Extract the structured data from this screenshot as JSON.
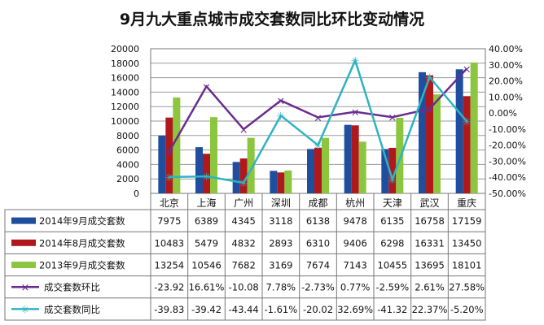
{
  "chart_data": {
    "type": "bar",
    "title": "9月九大重点城市成交套数同比环比变动情况",
    "categories": [
      "北京",
      "上海",
      "广州",
      "深圳",
      "成都",
      "杭州",
      "天津",
      "武汉",
      "重庆"
    ],
    "left_axis": {
      "min": 0,
      "max": 20000,
      "step": 2000,
      "ticks": [
        "0",
        "2000",
        "4000",
        "6000",
        "8000",
        "10000",
        "12000",
        "14000",
        "16000",
        "18000",
        "20000"
      ]
    },
    "right_axis": {
      "min": -50,
      "max": 40,
      "step": 10,
      "ticks": [
        "-50.00%",
        "-40.00%",
        "-30.00%",
        "-20.00%",
        "-10.00%",
        "0.00%",
        "10.00%",
        "20.00%",
        "30.00%",
        "40.00%"
      ]
    },
    "grid": true,
    "legend_position": "table-bottom",
    "bar_series": [
      {
        "name": "2014年9月成交套数",
        "color": "#1f4e9e",
        "values": [
          7975,
          6389,
          4345,
          3118,
          6138,
          9478,
          6135,
          16758,
          17159
        ],
        "labels": [
          "7975",
          "6389",
          "4345",
          "3118",
          "6138",
          "9478",
          "6135",
          "16758",
          "17159"
        ]
      },
      {
        "name": "2014年8月成交套数",
        "color": "#b0191c",
        "values": [
          10483,
          5479,
          4832,
          2893,
          6310,
          9406,
          6298,
          16331,
          13450
        ],
        "labels": [
          "10483",
          "5479",
          "4832",
          "2893",
          "6310",
          "9406",
          "6298",
          "16331",
          "13450"
        ]
      },
      {
        "name": "2013年9月成交套数",
        "color": "#8cc63f",
        "values": [
          13254,
          10546,
          7682,
          3169,
          7674,
          7143,
          10455,
          13695,
          18101
        ],
        "labels": [
          "13254",
          "10546",
          "7682",
          "3169",
          "7674",
          "7143",
          "10455",
          "13695",
          "18101"
        ]
      }
    ],
    "line_series": [
      {
        "name": "成交套数环比",
        "color": "#6a2d8f",
        "marker": "×",
        "values": [
          -23.92,
          16.61,
          -10.08,
          7.78,
          -2.73,
          0.77,
          -2.59,
          2.61,
          27.58
        ],
        "labels": [
          "-23.92",
          "16.61%",
          "-10.08",
          "7.78%",
          "-2.73%",
          "0.77%",
          "-2.59%",
          "2.61%",
          "27.58%"
        ]
      },
      {
        "name": "成交套数同比",
        "color": "#2fb3c1",
        "marker": "✳",
        "values": [
          -39.83,
          -39.42,
          -43.44,
          -1.61,
          -20.02,
          32.69,
          -41.32,
          22.37,
          -5.2
        ],
        "labels": [
          "-39.83",
          "-39.42",
          "-43.44",
          "-1.61%",
          "-20.02",
          "32.69%",
          "-41.32",
          "22.37%",
          "-5.20%"
        ]
      }
    ]
  }
}
